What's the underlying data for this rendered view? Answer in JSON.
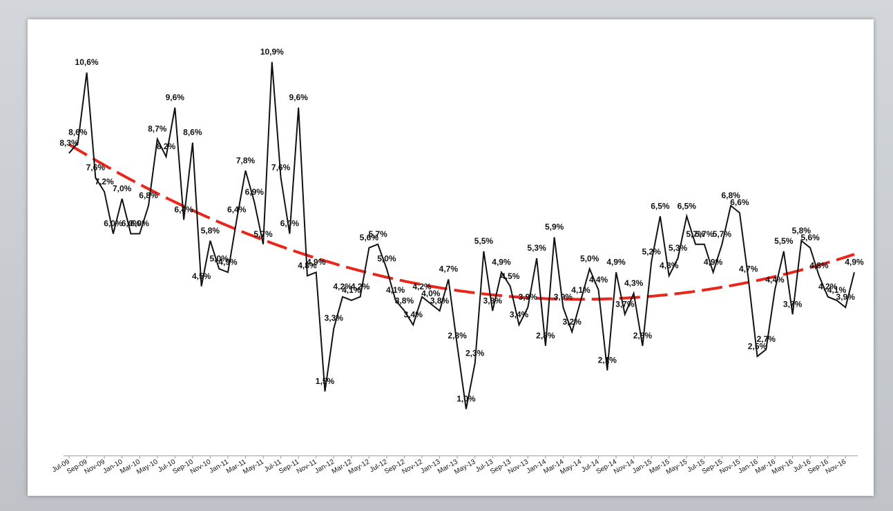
{
  "chart_data": {
    "type": "line",
    "categories": [
      "Jul-09",
      null,
      "Sep-09",
      null,
      "Nov-09",
      null,
      "Jan-10",
      null,
      "Mar-10",
      null,
      "May-10",
      null,
      "Jul-10",
      null,
      "Sep-10",
      null,
      "Nov-10",
      null,
      "Jan-11",
      null,
      "Mar-11",
      null,
      "May-11",
      null,
      "Jul-11",
      null,
      "Sep-11",
      null,
      "Nov-11",
      null,
      "Jan-12",
      null,
      "Mar-12",
      null,
      "May-12",
      null,
      "Jul-12",
      null,
      "Sep-12",
      null,
      "Nov-12",
      null,
      "Jan-13",
      null,
      "Mar-13",
      null,
      "May-13",
      null,
      "Jul-13",
      null,
      "Sep-13",
      null,
      "Nov-13",
      null,
      "Jan-14",
      null,
      "Mar-14",
      null,
      "May-14",
      null,
      "Jul-14",
      null,
      "Sep-14",
      null,
      "Nov-14",
      null,
      "Jan-15",
      null,
      "Mar-15",
      null,
      "May-15",
      null,
      "Jul-15",
      null,
      "Sep-15",
      null,
      "Nov-15",
      null,
      "Jan-16",
      null,
      "Mar-16",
      null,
      "May-16",
      null,
      "Jul-16",
      null,
      "Sep-16",
      null,
      "Nov-16",
      null
    ],
    "values": [
      8.3,
      8.6,
      10.6,
      7.6,
      7.2,
      6.0,
      7.0,
      6.0,
      6.0,
      6.8,
      8.7,
      8.2,
      9.6,
      6.4,
      8.6,
      4.5,
      5.8,
      5.0,
      4.9,
      6.4,
      7.8,
      6.9,
      5.7,
      10.9,
      7.6,
      6.0,
      9.6,
      4.8,
      4.9,
      1.5,
      3.3,
      4.2,
      4.1,
      4.2,
      5.6,
      5.7,
      5.0,
      4.1,
      3.8,
      3.4,
      4.2,
      4.0,
      3.8,
      4.7,
      2.8,
      1.0,
      2.3,
      5.5,
      3.8,
      4.9,
      4.5,
      3.4,
      3.9,
      5.3,
      2.8,
      5.9,
      3.9,
      3.2,
      4.1,
      5.0,
      4.4,
      2.1,
      4.9,
      3.7,
      4.3,
      2.8,
      5.2,
      6.5,
      4.8,
      5.3,
      6.5,
      5.7,
      5.7,
      4.9,
      5.7,
      6.8,
      6.6,
      4.7,
      2.5,
      2.7,
      4.4,
      5.5,
      3.7,
      5.8,
      5.6,
      4.8,
      4.2,
      4.1,
      3.9,
      4.9
    ],
    "value_labels": [
      "8,3%",
      "8,6%",
      "10,6%",
      "7,6%",
      "7,2%",
      "6,0%",
      "7,0%",
      "6,0%",
      "6,0%",
      "6,8%",
      "8,7%",
      "8,2%",
      "9,6%",
      "6,4%",
      "8,6%",
      "4,5%",
      "5,8%",
      "5,0%",
      "4,9%",
      "6,4%",
      "7,8%",
      "6,9%",
      "5,7%",
      "10,9%",
      "7,6%",
      "6,0%",
      "9,6%",
      "4,8%",
      "4,9%",
      "1,5%",
      "3,3%",
      "4,2%",
      "4,1%",
      "4,2%",
      "5,6%",
      "5,7%",
      "5,0%",
      "4,1%",
      "3,8%",
      "3,4%",
      "4,2%",
      "4,0%",
      "3,8%",
      "4,7%",
      "2,8%",
      "1,0%",
      "2,3%",
      "5,5%",
      "3,8%",
      "4,9%",
      "4,5%",
      "3,4%",
      "3,9%",
      "5,3%",
      "2,8%",
      "5,9%",
      "3,9%",
      "3,2%",
      "4,1%",
      "5,0%",
      "4,4%",
      "2,1%",
      "4,9%",
      "3,7%",
      "4,3%",
      "2,8%",
      "5,2%",
      "6,5%",
      "4,8%",
      "5,3%",
      "6,5%",
      "5,7%",
      "5,7%",
      "4,9%",
      "5,7%",
      "6,8%",
      "6,6%",
      "4,7%",
      "2,5%",
      "2,7%",
      "4,4%",
      "5,5%",
      "3,7%",
      "5,8%",
      "5,6%",
      "4,8%",
      "4,2%",
      "4,1%",
      "3,9%",
      "4,9%"
    ],
    "color": "#111111",
    "ylim": [
      0,
      12
    ],
    "trendline": {
      "type": "polynomial",
      "order": 2,
      "color": "#e8261c",
      "dashed": true
    }
  }
}
